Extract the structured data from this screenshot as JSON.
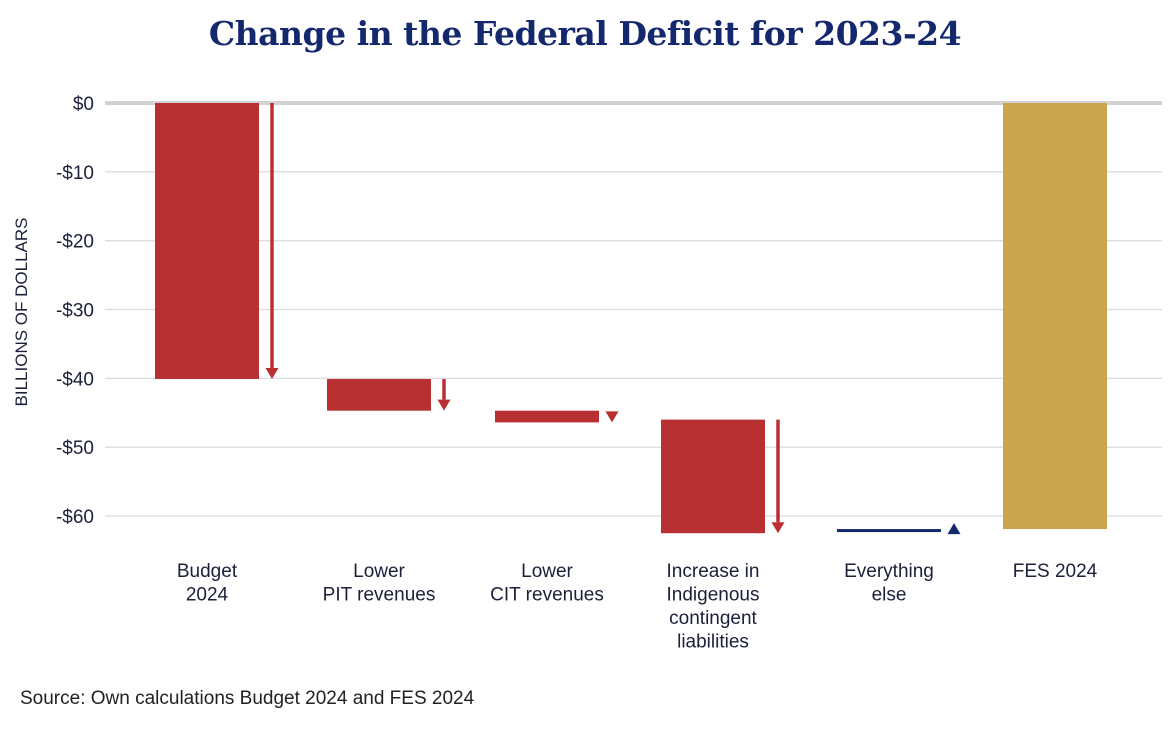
{
  "chart_data": {
    "type": "bar",
    "subtype": "waterfall",
    "title": "Change in the Federal Deficit for 2023-24",
    "ylabel": "BILLIONS OF DOLLARS",
    "xlabel": "",
    "ylim": [
      -65,
      0
    ],
    "yticks": [
      0,
      -10,
      -20,
      -30,
      -40,
      -50,
      -60
    ],
    "ytick_labels": [
      "$0",
      "-$10",
      "-$20",
      "-$30",
      "-$40",
      "-$50",
      "-$60"
    ],
    "grid": true,
    "categories": [
      [
        "Budget",
        "2024"
      ],
      [
        "Lower",
        "PIT revenues"
      ],
      [
        "Lower",
        "CIT revenues"
      ],
      [
        "Increase in",
        "Indigenous",
        "contingent",
        "liabilities"
      ],
      [
        "Everything",
        "else"
      ],
      [
        "FES 2024"
      ]
    ],
    "bars": [
      {
        "start": 0,
        "end": -40.1,
        "kind": "total",
        "color": "#b93033",
        "arrow": "down"
      },
      {
        "start": -40.1,
        "end": -44.7,
        "kind": "decrease",
        "color": "#b93033",
        "arrow": "down"
      },
      {
        "start": -44.7,
        "end": -46.4,
        "kind": "decrease",
        "color": "#b93033",
        "arrow": "down"
      },
      {
        "start": -46.0,
        "end": -62.5,
        "kind": "decrease",
        "color": "#b93033",
        "arrow": "down"
      },
      {
        "start": -62.3,
        "end": -61.9,
        "kind": "increase",
        "color": "#14286e",
        "arrow": "up"
      },
      {
        "start": 0,
        "end": -61.9,
        "kind": "total",
        "color": "#cba54e",
        "arrow": null
      }
    ],
    "colors": {
      "decrease": "#b93033",
      "increase": "#14286e",
      "total_final": "#cba54e"
    }
  },
  "source": "Source: Own calculations Budget 2024 and FES 2024"
}
